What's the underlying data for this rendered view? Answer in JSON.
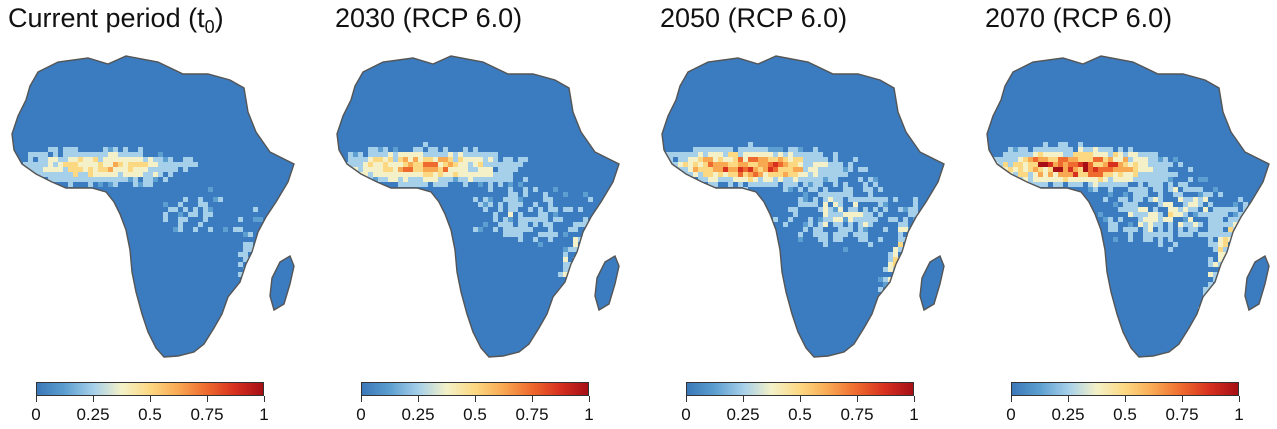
{
  "panels": [
    {
      "title_main": "Current period (t",
      "title_sub": "0",
      "title_end": ")",
      "intensity": 0.25
    },
    {
      "title_main": "2030 (RCP 6.0)",
      "title_sub": "",
      "title_end": "",
      "intensity": 0.5
    },
    {
      "title_main": "2050 (RCP 6.0)",
      "title_sub": "",
      "title_end": "",
      "intensity": 0.75
    },
    {
      "title_main": "2070 (RCP 6.0)",
      "title_sub": "",
      "title_end": "",
      "intensity": 1.0
    }
  ],
  "legend": {
    "min": 0,
    "max": 1,
    "tick_labels": [
      "0",
      "0.25",
      "0.5",
      "0.75",
      "1"
    ],
    "colors": [
      "#3a78b8",
      "#5d9fd0",
      "#a6d0ea",
      "#f4f1c8",
      "#fcd882",
      "#f9a852",
      "#ee6a2e",
      "#d7301f",
      "#a50f15"
    ]
  },
  "map": {
    "land_base_color": "#3b7bbf",
    "outline_color": "#555555"
  }
}
